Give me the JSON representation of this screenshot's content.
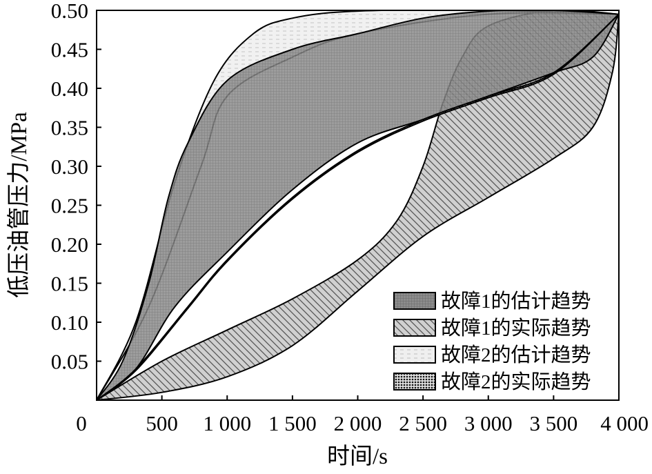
{
  "chart_data": {
    "type": "area",
    "xlabel": "时间/s",
    "ylabel": "低压油管压力/MPa",
    "xlim": [
      0,
      4000
    ],
    "ylim": [
      0,
      0.5
    ],
    "x_ticks": [
      0,
      500,
      1000,
      1500,
      2000,
      2500,
      3000,
      3500,
      4000
    ],
    "x_tick_labels": [
      "0",
      "500",
      "1 000",
      "1 500",
      "2 000",
      "2 500",
      "3 000",
      "3 500",
      "4 000"
    ],
    "y_ticks": [
      0.05,
      0.1,
      0.15,
      0.2,
      0.25,
      0.3,
      0.35,
      0.4,
      0.45,
      0.5
    ],
    "y_tick_labels": [
      "0.05",
      "0.10",
      "0.15",
      "0.20",
      "0.25",
      "0.30",
      "0.35",
      "0.40",
      "0.45",
      "0.50"
    ],
    "legend_position": "bottom-right",
    "series": [
      {
        "name": "故障1的估计趋势",
        "pattern": "grid",
        "color": "#8a8a8a",
        "upper": [
          [
            0,
            0
          ],
          [
            200,
            0.05
          ],
          [
            400,
            0.15
          ],
          [
            550,
            0.26
          ],
          [
            700,
            0.33
          ],
          [
            1000,
            0.41
          ],
          [
            1500,
            0.45
          ],
          [
            2000,
            0.47
          ],
          [
            2500,
            0.49
          ],
          [
            3000,
            0.499
          ],
          [
            3500,
            0.5
          ],
          [
            4000,
            0.495
          ]
        ],
        "lower": [
          [
            0,
            0
          ],
          [
            300,
            0.04
          ],
          [
            600,
            0.12
          ],
          [
            1000,
            0.19
          ],
          [
            1500,
            0.27
          ],
          [
            2000,
            0.33
          ],
          [
            2500,
            0.36
          ],
          [
            3000,
            0.39
          ],
          [
            3500,
            0.42
          ],
          [
            3800,
            0.44
          ],
          [
            4000,
            0.495
          ]
        ]
      },
      {
        "name": "故障1的实际趋势",
        "pattern": "diagonal",
        "color": "#cccccc",
        "upper": [
          [
            0,
            0
          ],
          [
            500,
            0.05
          ],
          [
            1000,
            0.09
          ],
          [
            1500,
            0.13
          ],
          [
            2000,
            0.18
          ],
          [
            2300,
            0.23
          ],
          [
            2500,
            0.3
          ],
          [
            2650,
            0.38
          ],
          [
            2800,
            0.44
          ],
          [
            3000,
            0.48
          ],
          [
            3500,
            0.5
          ],
          [
            4000,
            0.495
          ]
        ],
        "lower": [
          [
            0,
            0
          ],
          [
            500,
            0.01
          ],
          [
            1000,
            0.03
          ],
          [
            1500,
            0.07
          ],
          [
            2000,
            0.14
          ],
          [
            2500,
            0.21
          ],
          [
            3000,
            0.26
          ],
          [
            3500,
            0.31
          ],
          [
            3800,
            0.35
          ],
          [
            3950,
            0.42
          ],
          [
            4000,
            0.495
          ]
        ]
      },
      {
        "name": "故障2的估计趋势",
        "pattern": "dashed",
        "color": "#eeeeee",
        "upper": [
          [
            0,
            0
          ],
          [
            300,
            0.1
          ],
          [
            600,
            0.28
          ],
          [
            900,
            0.41
          ],
          [
            1200,
            0.47
          ],
          [
            1500,
            0.49
          ],
          [
            2000,
            0.499
          ],
          [
            3000,
            0.5
          ],
          [
            4000,
            0.495
          ]
        ],
        "lower": [
          [
            0,
            0
          ],
          [
            400,
            0.12
          ],
          [
            800,
            0.3
          ],
          [
            1000,
            0.39
          ],
          [
            1500,
            0.44
          ],
          [
            2000,
            0.47
          ],
          [
            3000,
            0.495
          ],
          [
            4000,
            0.495
          ]
        ]
      },
      {
        "name": "故障2的实际趋势",
        "pattern": "dots",
        "color": "#111111",
        "upper": [
          [
            0,
            0
          ],
          [
            300,
            0.04
          ],
          [
            700,
            0.12
          ],
          [
            1000,
            0.18
          ],
          [
            1500,
            0.26
          ],
          [
            2000,
            0.32
          ],
          [
            2500,
            0.36
          ],
          [
            3000,
            0.39
          ],
          [
            3500,
            0.42
          ],
          [
            4000,
            0.495
          ]
        ],
        "lower": [
          [
            0,
            0
          ],
          [
            300,
            0.038
          ],
          [
            700,
            0.118
          ],
          [
            1000,
            0.178
          ],
          [
            1500,
            0.258
          ],
          [
            2000,
            0.318
          ],
          [
            2500,
            0.358
          ],
          [
            3000,
            0.388
          ],
          [
            3500,
            0.418
          ],
          [
            4000,
            0.495
          ]
        ]
      }
    ]
  }
}
